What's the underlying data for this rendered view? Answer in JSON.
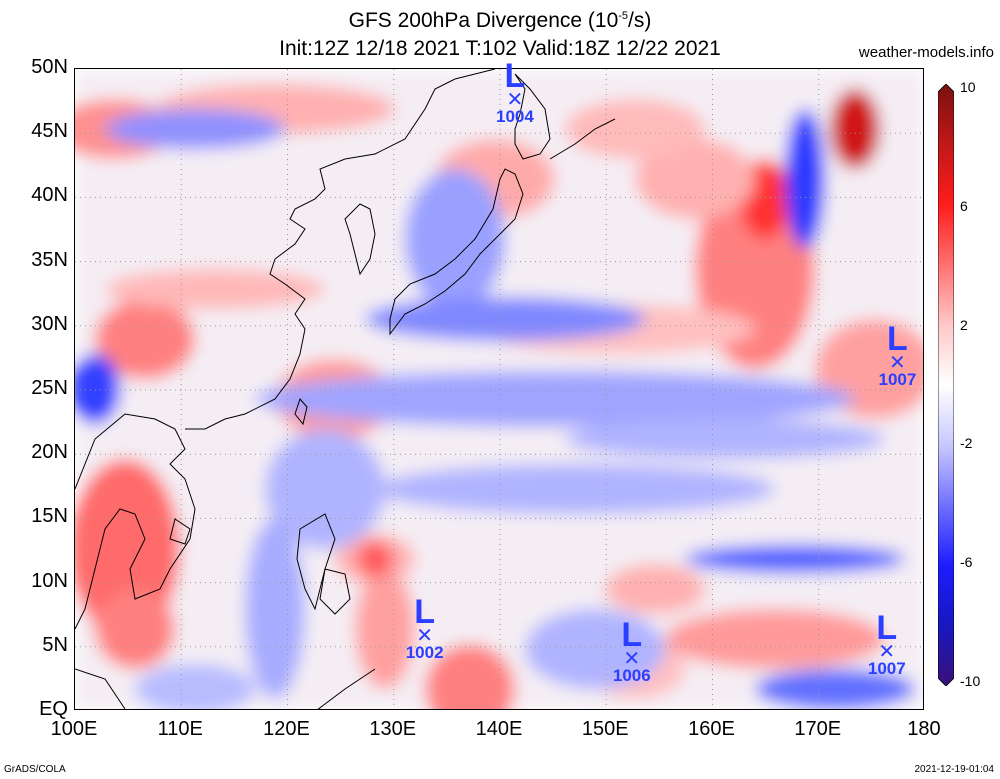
{
  "title": {
    "line1": "GFS 200hPa Divergence (10",
    "line1_sup": "-5",
    "line1_end": "/s)",
    "line2": "Init:12Z 12/18 2021 T:102 Valid:18Z 12/22 2021"
  },
  "site": "weather-models.info",
  "footer": {
    "left": "GrADS/COLA",
    "right": "2021-12-19-01:04"
  },
  "map": {
    "lon_range": [
      100,
      180
    ],
    "lat_range": [
      0,
      50
    ],
    "x_ticks": [
      "100E",
      "110E",
      "120E",
      "130E",
      "140E",
      "150E",
      "160E",
      "170E",
      "180"
    ],
    "y_ticks": [
      "50N",
      "45N",
      "40N",
      "35N",
      "30N",
      "25N",
      "20N",
      "15N",
      "10N",
      "5N",
      "EQ"
    ],
    "lows": [
      {
        "label": "L",
        "pressure": "1004",
        "lon": 141.5,
        "lat": 47.5
      },
      {
        "label": "L",
        "pressure": "1007",
        "lon": 177.5,
        "lat": 27.0
      },
      {
        "label": "L",
        "pressure": "1002",
        "lon": 133.0,
        "lat": 5.8
      },
      {
        "label": "L",
        "pressure": "1006",
        "lon": 152.5,
        "lat": 4.0
      },
      {
        "label": "L",
        "pressure": "1007",
        "lon": 176.5,
        "lat": 4.5
      }
    ]
  },
  "colorbar": {
    "labels": [
      "10",
      "6",
      "2",
      "-2",
      "-6",
      "-10"
    ],
    "colors": [
      "#7a1010",
      "#c01818",
      "#ff1c1c",
      "#ff7070",
      "#ffc8c8",
      "#ffffff",
      "#c8c8ff",
      "#7070ff",
      "#1c1cff",
      "#1818c0",
      "#3a1078"
    ]
  },
  "colors": {
    "low": "#2a3fff",
    "coast": "#000000"
  }
}
